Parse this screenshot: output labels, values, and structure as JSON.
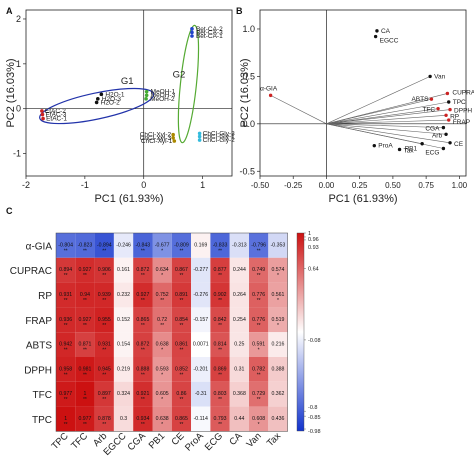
{
  "panels": {
    "a": "A",
    "b": "B",
    "c": "C"
  },
  "chart_data": [
    {
      "type": "scatter",
      "panel": "A",
      "xlabel": "PC1 (61.93%)",
      "ylabel": "PC2 (16.03%)",
      "xlim": [
        -2,
        1.5
      ],
      "ylim": [
        -1.5,
        2.2
      ],
      "xticks": [
        "-2",
        "-1",
        "0",
        "1"
      ],
      "yticks": [
        "-1",
        "0",
        "1",
        "2"
      ],
      "points": [
        {
          "label": "Bet-CA-2",
          "x": 0.82,
          "y": 1.78,
          "color": "#2244cc"
        },
        {
          "label": "Bet-CA-3",
          "x": 0.82,
          "y": 1.7,
          "color": "#2244cc"
        },
        {
          "label": "Bet-CA-1",
          "x": 0.82,
          "y": 1.62,
          "color": "#2244cc"
        },
        {
          "label": "H2O-1",
          "x": -0.72,
          "y": 0.32,
          "color": "#111111"
        },
        {
          "label": "H2O-3",
          "x": -0.78,
          "y": 0.22,
          "color": "#111111"
        },
        {
          "label": "H2O-2",
          "x": -0.8,
          "y": 0.14,
          "color": "#111111"
        },
        {
          "label": "MeOH-1",
          "x": 0.05,
          "y": 0.38,
          "color": "#44aa33"
        },
        {
          "label": "MeOH-3",
          "x": 0.05,
          "y": 0.3,
          "color": "#44aa33"
        },
        {
          "label": "MeOH-2",
          "x": 0.04,
          "y": 0.22,
          "color": "#44aa33"
        },
        {
          "label": "EtAC-2",
          "x": -1.73,
          "y": -0.05,
          "color": "#cc2222"
        },
        {
          "label": "EtAC-3",
          "x": -1.72,
          "y": -0.13,
          "color": "#cc2222"
        },
        {
          "label": "EtAC-1",
          "x": -1.71,
          "y": -0.22,
          "color": "#cc2222"
        },
        {
          "label": "ChCl-Gly-3",
          "x": 0.95,
          "y": -0.55,
          "color": "#33bbdd"
        },
        {
          "label": "ChCl-Gly-1",
          "x": 0.95,
          "y": -0.62,
          "color": "#33bbdd"
        },
        {
          "label": "ChCl-Gly-2",
          "x": 0.95,
          "y": -0.7,
          "color": "#33bbdd"
        },
        {
          "label": "ChCl-Xyl-2",
          "x": 0.5,
          "y": -0.58,
          "color": "#aa8800"
        },
        {
          "label": "ChCl-Xyl-3",
          "x": 0.5,
          "y": -0.65,
          "color": "#aa8800"
        },
        {
          "label": "ChCl-Xyl-1",
          "x": 0.52,
          "y": -0.72,
          "color": "#aa8800"
        }
      ],
      "groups": [
        {
          "label": "G1",
          "color": "#2233aa"
        },
        {
          "label": "G2",
          "color": "#55aa33"
        }
      ]
    },
    {
      "type": "scatter",
      "panel": "B",
      "xlabel": "PC1 (61.93%)",
      "ylabel": "PC2 (16.03%)",
      "xlim": [
        -0.5,
        1.05
      ],
      "ylim": [
        -0.55,
        1.2
      ],
      "xticks": [
        "-0.50",
        "-0.25",
        "0.00",
        "0.25",
        "0.50",
        "0.75",
        "1.00"
      ],
      "yticks": [
        "-0.5",
        "0.0",
        "0.5",
        "1.0"
      ],
      "points": [
        {
          "label": "CA",
          "x": 0.38,
          "y": 0.98,
          "color": "#111111"
        },
        {
          "label": "EGCC",
          "x": 0.37,
          "y": 0.92,
          "color": "#111111"
        },
        {
          "label": "Van",
          "x": 0.78,
          "y": 0.5,
          "color": "#111111"
        },
        {
          "label": "α-GIA",
          "x": -0.42,
          "y": 0.3,
          "color": "#cc2222"
        },
        {
          "label": "CUPRAC",
          "x": 0.91,
          "y": 0.32,
          "color": "#cc2222"
        },
        {
          "label": "ABTS",
          "x": 0.79,
          "y": 0.26,
          "color": "#cc2222"
        },
        {
          "label": "TPC",
          "x": 0.92,
          "y": 0.23,
          "color": "#111111"
        },
        {
          "label": "TFC",
          "x": 0.84,
          "y": 0.16,
          "color": "#cc2222"
        },
        {
          "label": "DPPH",
          "x": 0.93,
          "y": 0.15,
          "color": "#cc2222"
        },
        {
          "label": "RP",
          "x": 0.9,
          "y": 0.09,
          "color": "#cc2222"
        },
        {
          "label": "FRAP",
          "x": 0.92,
          "y": 0.04,
          "color": "#cc2222"
        },
        {
          "label": "CGA",
          "x": 0.88,
          "y": -0.04,
          "color": "#111111"
        },
        {
          "label": "Arb",
          "x": 0.9,
          "y": -0.11,
          "color": "#111111"
        },
        {
          "label": "CE",
          "x": 0.93,
          "y": -0.2,
          "color": "#111111"
        },
        {
          "label": "ECG",
          "x": 0.88,
          "y": -0.26,
          "color": "#111111"
        },
        {
          "label": "PB1",
          "x": 0.72,
          "y": -0.21,
          "color": "#111111"
        },
        {
          "label": "ProA",
          "x": 0.36,
          "y": -0.23,
          "color": "#111111"
        },
        {
          "label": "Tax",
          "x": 0.55,
          "y": -0.27,
          "color": "#111111"
        }
      ]
    },
    {
      "type": "heatmap",
      "panel": "C",
      "rows": [
        "α-GIA",
        "CUPRAC",
        "RP",
        "FRAP",
        "ABTS",
        "DPPH",
        "TFC",
        "TPC"
      ],
      "cols": [
        "TPC",
        "TFC",
        "Arb",
        "EGCC",
        "CGA",
        "PB1",
        "CE",
        "ProA",
        "ECG",
        "CA",
        "Van",
        "Tax"
      ],
      "values": [
        [
          -0.804,
          -0.823,
          -0.894,
          -0.246,
          -0.843,
          -0.677,
          -0.809,
          0.169,
          -0.833,
          -0.313,
          -0.796,
          -0.353
        ],
        [
          0.894,
          0.927,
          0.906,
          0.161,
          0.872,
          0.634,
          0.867,
          -0.277,
          0.877,
          0.244,
          0.749,
          0.574
        ],
        [
          0.931,
          0.94,
          0.939,
          0.232,
          0.927,
          0.752,
          0.891,
          -0.276,
          0.902,
          0.264,
          0.776,
          0.561
        ],
        [
          0.936,
          0.927,
          0.955,
          0.152,
          0.865,
          0.72,
          0.854,
          -0.157,
          0.842,
          0.254,
          0.776,
          0.519
        ],
        [
          0.942,
          0.871,
          0.931,
          0.154,
          0.872,
          0.638,
          0.861,
          0.0071,
          0.814,
          0.25,
          0.591,
          0.216
        ],
        [
          0.958,
          0.981,
          0.945,
          0.219,
          0.888,
          0.593,
          0.852,
          -0.201,
          0.869,
          0.31,
          0.782,
          0.388
        ],
        [
          0.977,
          1,
          0.897,
          0.324,
          0.921,
          0.605,
          0.86,
          -0.31,
          0.803,
          0.368,
          0.729,
          0.362
        ],
        [
          1,
          0.977,
          0.878,
          0.3,
          0.934,
          0.638,
          0.865,
          -0.114,
          0.793,
          0.44,
          0.608,
          0.436
        ]
      ],
      "display": [
        [
          "-0.804",
          "-0.823",
          "-0.894",
          "-0.246",
          "-0.843",
          "-0.677",
          "-0.809",
          "0.169",
          "-0.833",
          "-0.313",
          "-0.796",
          "-0.353"
        ],
        [
          "0.894",
          "0.927",
          "0.906",
          "0.161",
          "0.872",
          "0.634",
          "0.867",
          "-0.277",
          "0.877",
          "0.244",
          "0.749",
          "0.574"
        ],
        [
          "0.931",
          "0.94",
          "0.939",
          "0.232",
          "0.927",
          "0.752",
          "0.891",
          "-0.276",
          "0.902",
          "0.264",
          "0.776",
          "0.561"
        ],
        [
          "0.936",
          "0.927",
          "0.955",
          "0.152",
          "0.865",
          "0.72",
          "0.854",
          "-0.157",
          "0.842",
          "0.254",
          "0.776",
          "0.519"
        ],
        [
          "0.942",
          "0.871",
          "0.931",
          "0.154",
          "0.872",
          "0.638",
          "0.861",
          "0.0071",
          "0.814",
          "0.25",
          "0.591",
          "0.216"
        ],
        [
          "0.958",
          "0.981",
          "0.945",
          "0.219",
          "0.888",
          "0.593",
          "0.852",
          "-0.201",
          "0.869",
          "0.31",
          "0.782",
          "0.388"
        ],
        [
          "0.977",
          "1",
          "0.897",
          "0.324",
          "0.921",
          "0.605",
          "0.86",
          "-0.31",
          "0.803",
          "0.368",
          "0.729",
          "0.362"
        ],
        [
          "1",
          "0.977",
          "0.878",
          "0.3",
          "0.934",
          "0.638",
          "0.865",
          "-0.114",
          "0.793",
          "0.44",
          "0.608",
          "0.436"
        ]
      ],
      "significance": [
        [
          "**",
          "**",
          "**",
          "",
          "**",
          "*",
          "**",
          "",
          "**",
          "",
          "**",
          ""
        ],
        [
          "**",
          "**",
          "**",
          "",
          "**",
          "*",
          "**",
          "",
          "**",
          "",
          "**",
          "*"
        ],
        [
          "**",
          "**",
          "**",
          "",
          "**",
          "**",
          "**",
          "",
          "**",
          "",
          "**",
          "*"
        ],
        [
          "**",
          "**",
          "**",
          "",
          "**",
          "**",
          "**",
          "",
          "**",
          "",
          "**",
          "*"
        ],
        [
          "**",
          "**",
          "**",
          "",
          "**",
          "*",
          "**",
          "",
          "**",
          "",
          "*",
          ""
        ],
        [
          "**",
          "**",
          "**",
          "",
          "**",
          "*",
          "**",
          "",
          "**",
          "",
          "**",
          ""
        ],
        [
          "**",
          "**",
          "**",
          "",
          "**",
          "*",
          "**",
          "",
          "**",
          "",
          "**",
          ""
        ],
        [
          "**",
          "**",
          "**",
          "",
          "**",
          "*",
          "**",
          "",
          "**",
          "",
          "*",
          ""
        ]
      ],
      "colorbar": {
        "ticks": [
          "1",
          "0.96",
          "0.93",
          "0.64",
          "-0.08",
          "-0.8",
          "-0.85",
          "-0.98"
        ],
        "tick_values": [
          1,
          0.96,
          0.93,
          0.64,
          -0.08,
          -0.8,
          -0.85,
          -0.98
        ],
        "colors": {
          "high": "#cc1111",
          "mid": "#ffffff",
          "low": "#1133cc"
        }
      }
    }
  ]
}
